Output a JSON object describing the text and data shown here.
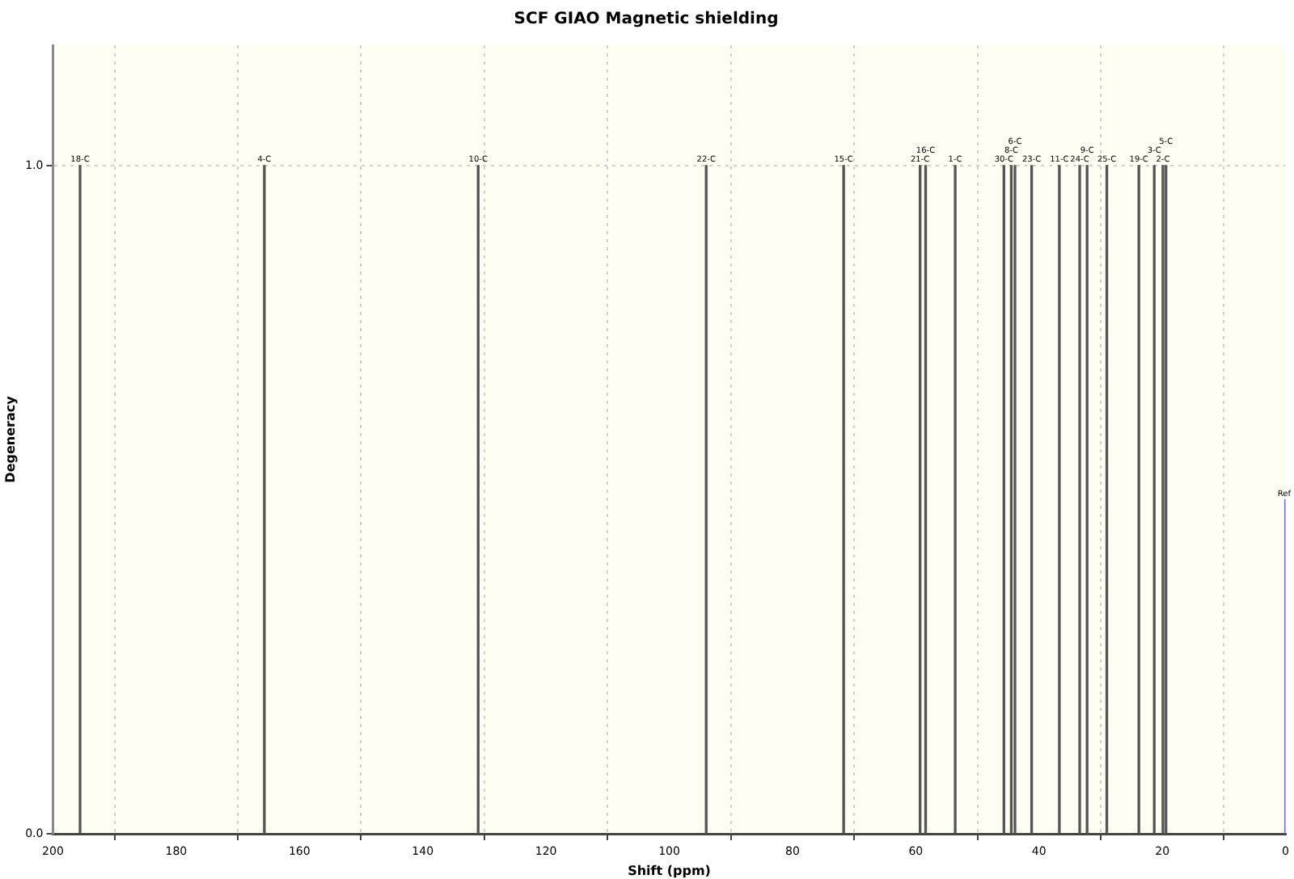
{
  "chart_data": {
    "type": "bar",
    "title": "SCF GIAO Magnetic shielding",
    "xlabel": "Shift (ppm)",
    "ylabel": "Degeneracy",
    "xlim": [
      200,
      0
    ],
    "xticks": [
      200,
      180,
      160,
      140,
      120,
      100,
      80,
      60,
      40,
      20,
      0
    ],
    "ylim": [
      0,
      1.18
    ],
    "yticks": [
      {
        "value": 0,
        "label": "0.0"
      },
      {
        "value": 1,
        "label": "1.0"
      }
    ],
    "grid": true,
    "series": [
      {
        "color": "#555555",
        "x": [
          195.6,
          165.7,
          131.0,
          94.0,
          71.7,
          59.3,
          58.4,
          53.6,
          45.7,
          44.5,
          43.9,
          41.2,
          36.7,
          33.4,
          32.2,
          29.0,
          23.8,
          21.3,
          19.9,
          19.4
        ],
        "values": [
          1,
          1,
          1,
          1,
          1,
          1,
          1,
          1,
          1,
          1,
          1,
          1,
          1,
          1,
          1,
          1,
          1,
          1,
          1,
          1
        ]
      },
      {
        "color": "#7070ff",
        "x": [
          0
        ],
        "values": [
          0.5
        ]
      }
    ],
    "annotations": [
      {
        "text": "18-C",
        "x": 195.6,
        "y": 1
      },
      {
        "text": "4-C",
        "x": 165.7,
        "y": 1
      },
      {
        "text": "10-C",
        "x": 131.0,
        "y": 1
      },
      {
        "text": "22-C",
        "x": 94.0,
        "y": 1
      },
      {
        "text": "15-C",
        "x": 71.7,
        "y": 1
      },
      {
        "text": "21-C",
        "x": 59.3,
        "y": 1
      },
      {
        "text": "16-C",
        "x": 58.4,
        "y": 1
      },
      {
        "text": "1-C",
        "x": 53.6,
        "y": 1
      },
      {
        "text": "30-C",
        "x": 45.7,
        "y": 1
      },
      {
        "text": "8-C",
        "x": 44.5,
        "y": 1
      },
      {
        "text": "6-C",
        "x": 43.9,
        "y": 1
      },
      {
        "text": "23-C",
        "x": 41.2,
        "y": 1
      },
      {
        "text": "11-C",
        "x": 36.7,
        "y": 1
      },
      {
        "text": "24-C",
        "x": 33.4,
        "y": 1
      },
      {
        "text": "9-C",
        "x": 32.2,
        "y": 1
      },
      {
        "text": "25-C",
        "x": 29.0,
        "y": 1
      },
      {
        "text": "19-C",
        "x": 23.8,
        "y": 1
      },
      {
        "text": "3-C",
        "x": 21.3,
        "y": 1
      },
      {
        "text": "2-C",
        "x": 19.9,
        "y": 1
      },
      {
        "text": "5-C",
        "x": 19.4,
        "y": 1
      },
      {
        "text": "Ref",
        "x": 0,
        "y": 0.5
      }
    ]
  }
}
